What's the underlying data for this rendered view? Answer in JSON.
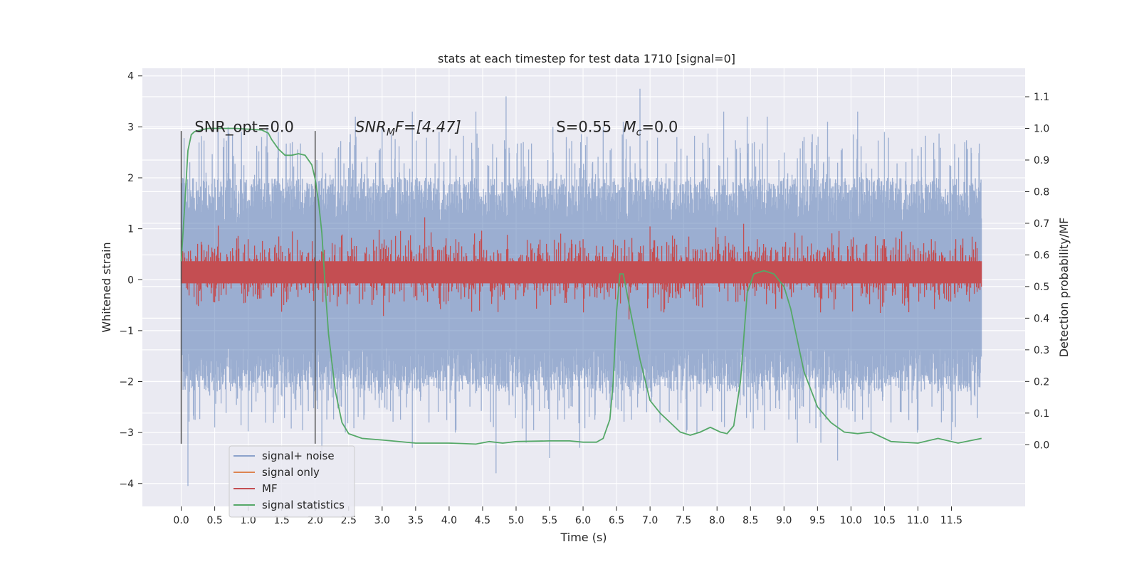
{
  "chart_data": {
    "type": "line",
    "title": "stats at each timestep for test data 1710 [signal=0]",
    "xlabel": "Time (s)",
    "ylabel": "Whitened strain",
    "y2label": "Detection probability/MF",
    "xlim": [
      -0.58,
      12.6
    ],
    "ylim": [
      -4.45,
      4.15
    ],
    "y2lim": [
      -0.195,
      1.19
    ],
    "x_ticks": [
      "0.0",
      "0.5",
      "1.0",
      "1.5",
      "2.0",
      "2.5",
      "3.0",
      "3.5",
      "4.0",
      "4.5",
      "5.0",
      "5.5",
      "6.0",
      "6.5",
      "7.0",
      "7.5",
      "8.0",
      "8.5",
      "9.0",
      "9.5",
      "10.0",
      "10.5",
      "11.0",
      "11.5"
    ],
    "y_ticks": [
      "4",
      "3",
      "2",
      "1",
      "0",
      "−1",
      "−2",
      "−3",
      "−4"
    ],
    "y2_ticks": [
      "1.1",
      "1.0",
      "0.9",
      "0.8",
      "0.7",
      "0.6",
      "0.5",
      "0.4",
      "0.3",
      "0.2",
      "0.1",
      "0.0"
    ],
    "grid": true,
    "legend_position": "lower-left",
    "annotations": [
      {
        "text": "SNR_opt=0.0",
        "x": 0.2,
        "y": 3.0
      },
      {
        "text": "SNR",
        "sub": "M",
        "tail": "F=[4.47]",
        "italic": true,
        "x": 2.6,
        "y": 3.0
      },
      {
        "text": "S=0.55",
        "x": 5.6,
        "y": 3.0
      },
      {
        "text": "M",
        "sub": "c",
        "tail": "=0.0",
        "x": 6.6,
        "y": 3.0
      }
    ],
    "vertical_markers": [
      0.0,
      2.0
    ],
    "vertical_marker_range": [
      -3.22,
      2.92
    ],
    "series": [
      {
        "name": "signal+ noise",
        "color": "#4c72b0",
        "axis": "left",
        "t_range": [
          0.0,
          11.95
        ],
        "envelope_sigma": 0.95,
        "peaks": [
          [
            0.37,
            2.1
          ],
          [
            0.55,
            2.9
          ],
          [
            0.7,
            3.0
          ],
          [
            0.9,
            2.9
          ],
          [
            1.2,
            2.8
          ],
          [
            1.45,
            2.9
          ],
          [
            2.35,
            2.6
          ],
          [
            2.6,
            3.2
          ],
          [
            3.0,
            3.0
          ],
          [
            3.45,
            3.3
          ],
          [
            3.85,
            2.9
          ],
          [
            4.4,
            3.3
          ],
          [
            4.85,
            3.6
          ],
          [
            5.55,
            3.0
          ],
          [
            5.75,
            2.8
          ],
          [
            6.3,
            3.0
          ],
          [
            6.6,
            3.1
          ],
          [
            6.85,
            3.75
          ],
          [
            7.4,
            2.8
          ],
          [
            8.1,
            3.3
          ],
          [
            8.45,
            3.2
          ],
          [
            8.75,
            3.2
          ],
          [
            9.3,
            2.8
          ],
          [
            9.65,
            3.1
          ],
          [
            10.1,
            3.3
          ],
          [
            10.5,
            2.9
          ],
          [
            11.05,
            2.6
          ],
          [
            11.7,
            2.7
          ]
        ],
        "troughs": [
          [
            0.1,
            -3.0
          ],
          [
            0.1,
            -4.05
          ],
          [
            0.5,
            -2.9
          ],
          [
            1.0,
            -2.7
          ],
          [
            1.4,
            -2.6
          ],
          [
            2.1,
            -3.5
          ],
          [
            2.45,
            -3.0
          ],
          [
            3.45,
            -3.3
          ],
          [
            4.7,
            -3.8
          ],
          [
            5.15,
            -3.2
          ],
          [
            5.5,
            -3.5
          ],
          [
            5.95,
            -3.3
          ],
          [
            6.95,
            -2.6
          ],
          [
            7.7,
            -3.0
          ],
          [
            8.5,
            -2.6
          ],
          [
            9.2,
            -3.2
          ],
          [
            9.55,
            -3.2
          ],
          [
            9.8,
            -3.55
          ],
          [
            10.3,
            -3.0
          ],
          [
            10.75,
            -2.6
          ],
          [
            11.35,
            -2.8
          ],
          [
            11.5,
            -3.15
          ]
        ]
      },
      {
        "name": "signal only",
        "color": "#dd8452",
        "axis": "left",
        "values": []
      },
      {
        "name": "MF",
        "color": "#c44e52",
        "axis": "right",
        "baseline": 0.55,
        "spread": 0.09,
        "peaks": [
          [
            0.85,
            0.66
          ],
          [
            1.0,
            0.65
          ],
          [
            3.2,
            0.66
          ],
          [
            4.1,
            0.65
          ],
          [
            6.0,
            0.65
          ],
          [
            7.0,
            0.69
          ],
          [
            8.6,
            0.65
          ],
          [
            10.5,
            0.65
          ],
          [
            11.2,
            0.65
          ]
        ]
      },
      {
        "name": "signal statistics",
        "color": "#55a868",
        "axis": "right",
        "x": [
          0.0,
          0.05,
          0.1,
          0.15,
          0.2,
          0.4,
          0.8,
          1.2,
          1.3,
          1.35,
          1.45,
          1.55,
          1.65,
          1.75,
          1.85,
          1.95,
          2.0,
          2.05,
          2.1,
          2.15,
          2.2,
          2.3,
          2.4,
          2.5,
          2.7,
          3.0,
          3.5,
          4.0,
          4.4,
          4.6,
          4.8,
          5.0,
          5.5,
          5.8,
          6.0,
          6.2,
          6.3,
          6.4,
          6.45,
          6.5,
          6.55,
          6.6,
          6.7,
          6.85,
          7.0,
          7.15,
          7.3,
          7.45,
          7.6,
          7.75,
          7.9,
          8.05,
          8.15,
          8.25,
          8.35,
          8.45,
          8.55,
          8.7,
          8.85,
          9.0,
          9.1,
          9.2,
          9.3,
          9.5,
          9.7,
          9.9,
          10.1,
          10.3,
          10.6,
          11.0,
          11.3,
          11.6,
          11.95
        ],
        "y": [
          0.58,
          0.75,
          0.93,
          0.98,
          0.99,
          1.0,
          1.0,
          0.995,
          0.985,
          0.965,
          0.935,
          0.915,
          0.915,
          0.92,
          0.915,
          0.885,
          0.84,
          0.77,
          0.67,
          0.5,
          0.35,
          0.17,
          0.07,
          0.035,
          0.02,
          0.015,
          0.005,
          0.005,
          0.002,
          0.01,
          0.005,
          0.01,
          0.012,
          0.012,
          0.008,
          0.008,
          0.02,
          0.08,
          0.2,
          0.42,
          0.54,
          0.54,
          0.43,
          0.27,
          0.14,
          0.1,
          0.07,
          0.04,
          0.03,
          0.04,
          0.055,
          0.04,
          0.035,
          0.06,
          0.2,
          0.48,
          0.54,
          0.55,
          0.54,
          0.5,
          0.43,
          0.33,
          0.23,
          0.12,
          0.07,
          0.04,
          0.035,
          0.04,
          0.01,
          0.005,
          0.02,
          0.005,
          0.02
        ]
      }
    ]
  }
}
